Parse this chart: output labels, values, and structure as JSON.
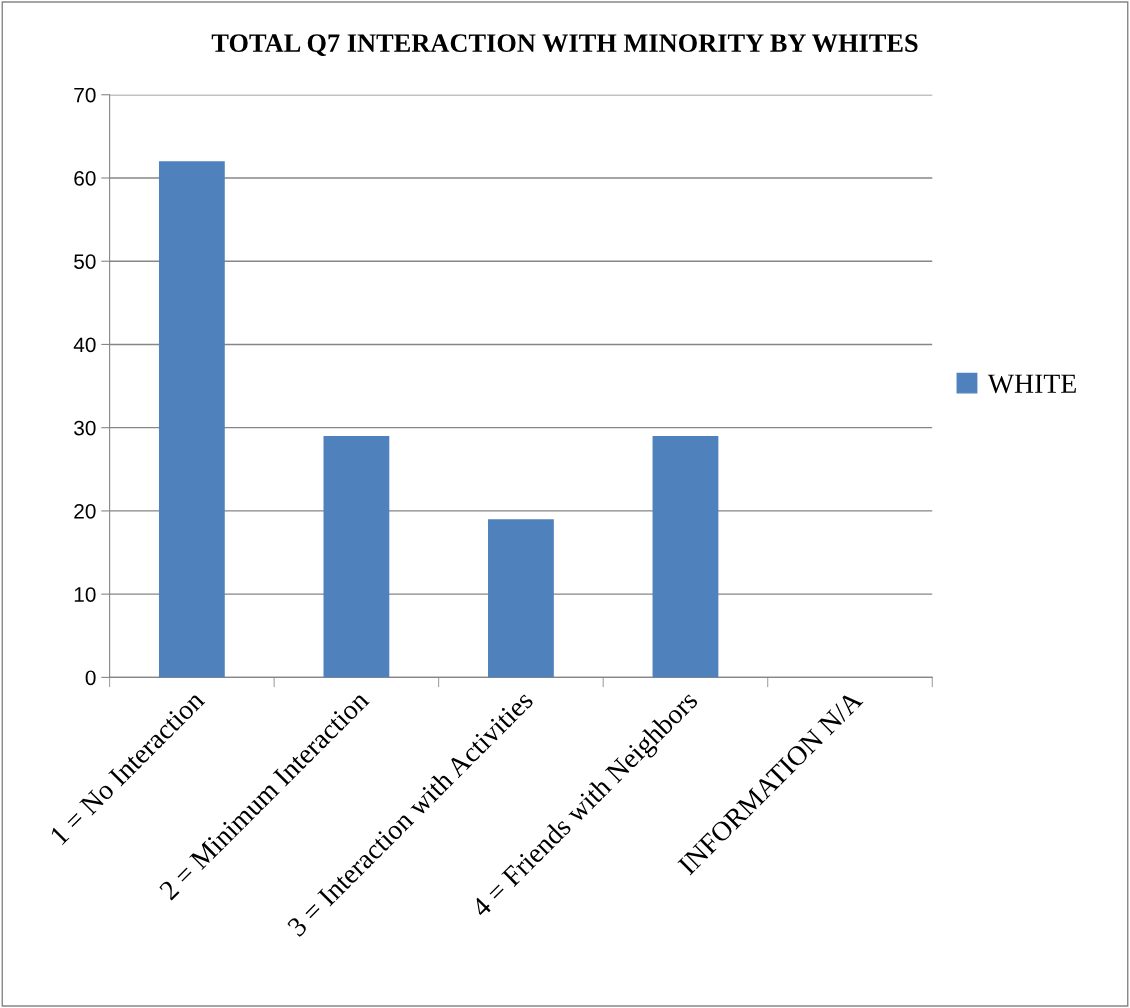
{
  "chart_data": {
    "type": "bar",
    "title": "TOTAL Q7 INTERACTION WITH MINORITY BY WHITES",
    "categories": [
      "1 = No Interaction",
      "2 = Minimum Interaction",
      "3 = Interaction with Activities",
      "4 = Friends with Neighbors",
      "INFORMATION N/A"
    ],
    "series": [
      {
        "name": "WHITE",
        "color": "#4f81bd",
        "values": [
          62,
          29,
          19,
          29,
          0
        ]
      }
    ],
    "ylim": [
      0,
      70
    ],
    "yticks": [
      0,
      10,
      20,
      30,
      40,
      50,
      60,
      70
    ],
    "grid": "y",
    "legend": "right"
  }
}
